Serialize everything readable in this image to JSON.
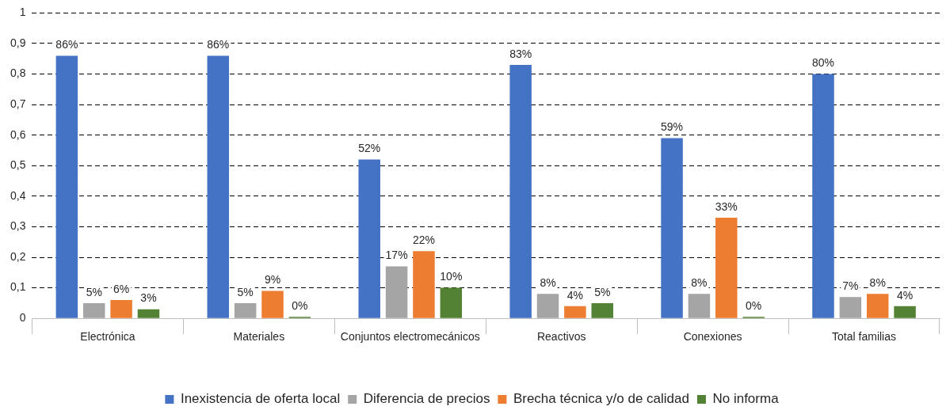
{
  "chart_data": {
    "type": "bar",
    "categories": [
      "Electrónica",
      "Materiales",
      "Conjuntos electromecánicos",
      "Reactivos",
      "Conexiones",
      "Total familias"
    ],
    "series": [
      {
        "name": "Inexistencia de oferta local",
        "color": "#4472c4",
        "values": [
          0.86,
          0.86,
          0.52,
          0.83,
          0.59,
          0.8
        ],
        "value_labels": [
          "86%",
          "86%",
          "52%",
          "83%",
          "59%",
          "80%"
        ]
      },
      {
        "name": "Diferencia de precios",
        "color": "#a5a5a5",
        "values": [
          0.05,
          0.05,
          0.17,
          0.08,
          0.08,
          0.07
        ],
        "value_labels": [
          "5%",
          "5%",
          "17%",
          "8%",
          "8%",
          "7%"
        ]
      },
      {
        "name": "Brecha técnica y/o de calidad",
        "color": "#ed7d31",
        "values": [
          0.06,
          0.09,
          0.22,
          0.04,
          0.33,
          0.08
        ],
        "value_labels": [
          "6%",
          "9%",
          "22%",
          "4%",
          "33%",
          "8%"
        ]
      },
      {
        "name": "No informa",
        "color": "#548235",
        "values": [
          0.03,
          0,
          0.1,
          0.05,
          0,
          0.04
        ],
        "value_labels": [
          "3%",
          "0%",
          "10%",
          "5%",
          "0%",
          "4%"
        ]
      }
    ],
    "ylim": [
      0,
      1
    ],
    "yticks": [
      0,
      {
        "value": 0.1,
        "label": "0,1"
      },
      {
        "value": 0.2,
        "label": "0,2"
      },
      {
        "value": 0.3,
        "label": "0,3"
      },
      {
        "value": 0.4,
        "label": "0,4"
      },
      {
        "value": 0.5,
        "label": "0,5"
      },
      {
        "value": 0.6,
        "label": "0,6"
      },
      {
        "value": 0.7,
        "label": "0,7"
      },
      {
        "value": 0.8,
        "label": "0,8"
      },
      {
        "value": 0.9,
        "label": "0,9"
      },
      1
    ],
    "grid": "y",
    "legend": "bottom",
    "line_style": "dashed"
  }
}
